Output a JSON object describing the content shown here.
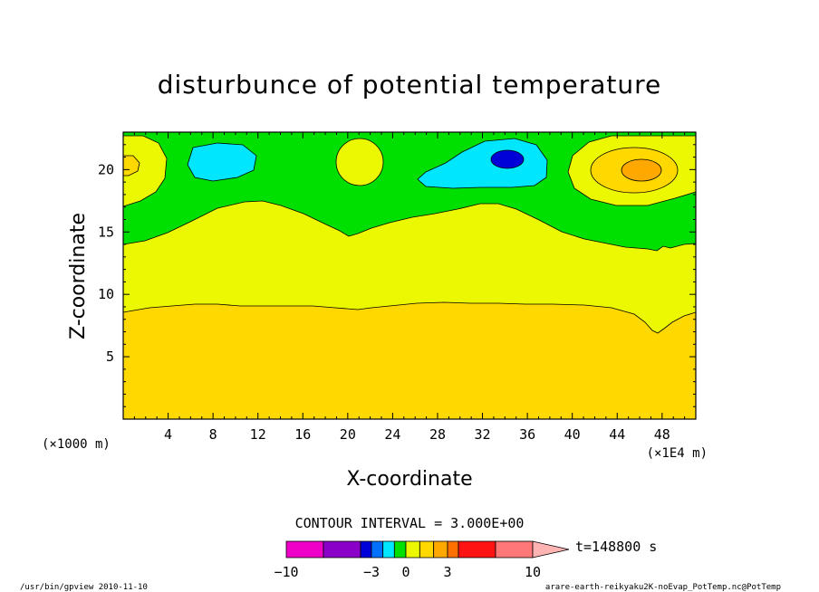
{
  "chart_data": {
    "type": "heatmap",
    "title": "disturbunce of potential temperature",
    "xlabel": "X-coordinate",
    "ylabel": "Z-coordinate",
    "xlim": [
      0,
      51
    ],
    "ylim": [
      0,
      23
    ],
    "x_ticks": [
      "4",
      "8",
      "12",
      "16",
      "20",
      "24",
      "28",
      "32",
      "36",
      "40",
      "44",
      "48"
    ],
    "x_tick_values": [
      4,
      8,
      12,
      16,
      20,
      24,
      28,
      32,
      36,
      40,
      44,
      48
    ],
    "y_ticks": [
      "5",
      "10",
      "15",
      "20"
    ],
    "y_tick_values": [
      5,
      10,
      15,
      20
    ],
    "y_unit": "(×1000 m)",
    "x_unit": "(×1E4 m)",
    "contour_interval": "CONTOUR INTERVAL = 3.000E+00",
    "time_label": "t=148800 s",
    "colorbar": {
      "tick_labels": [
        "−10",
        "−3",
        "0",
        "3",
        "10"
      ],
      "tick_values": [
        -10,
        -3,
        0,
        3,
        10
      ],
      "bins": [
        {
          "from": -10,
          "to": -7,
          "color": "#ee00c8"
        },
        {
          "from": -7,
          "to": -4,
          "color": "#8a00c8"
        },
        {
          "from": -4,
          "to": -3,
          "color": "#0000d8"
        },
        {
          "from": -3,
          "to": -2,
          "color": "#0070ff"
        },
        {
          "from": -2,
          "to": -1,
          "color": "#00e6ff"
        },
        {
          "from": -1,
          "to": 0,
          "color": "#00e000"
        },
        {
          "from": 0,
          "to": 1,
          "color": "#ecf800"
        },
        {
          "from": 1,
          "to": 2,
          "color": "#ffd800"
        },
        {
          "from": 2,
          "to": 3,
          "color": "#ffa800"
        },
        {
          "from": 3,
          "to": 4,
          "color": "#ff7000"
        },
        {
          "from": 4,
          "to": 7,
          "color": "#ff1414"
        },
        {
          "from": 7,
          "to": 10,
          "color": "#ff7878"
        },
        {
          "from": 10,
          "to": 13,
          "color": "#ffb4b4"
        }
      ]
    },
    "regions": [
      {
        "name": "green-layer",
        "value_range": "-1 to 0",
        "color": "#00e000"
      },
      {
        "name": "yellow-layer",
        "value_range": "0 to 1",
        "color": "#ecf800"
      },
      {
        "name": "orange-layer",
        "value_range": "1 to 2",
        "color": "#ffd800"
      },
      {
        "name": "cyan-blob",
        "value_range": "-2 to -1",
        "color": "#00e6ff"
      },
      {
        "name": "blue-core",
        "value_range": "-3 to -2",
        "color": "#0070ff"
      },
      {
        "name": "warm-core",
        "value_range": "2 to 3",
        "color": "#ffa800"
      }
    ]
  },
  "footer": {
    "left": "/usr/bin/gpview  2010-11-10",
    "right": "arare-earth-reikyaku2K-noEvap_PotTemp.nc@PotTemp"
  }
}
